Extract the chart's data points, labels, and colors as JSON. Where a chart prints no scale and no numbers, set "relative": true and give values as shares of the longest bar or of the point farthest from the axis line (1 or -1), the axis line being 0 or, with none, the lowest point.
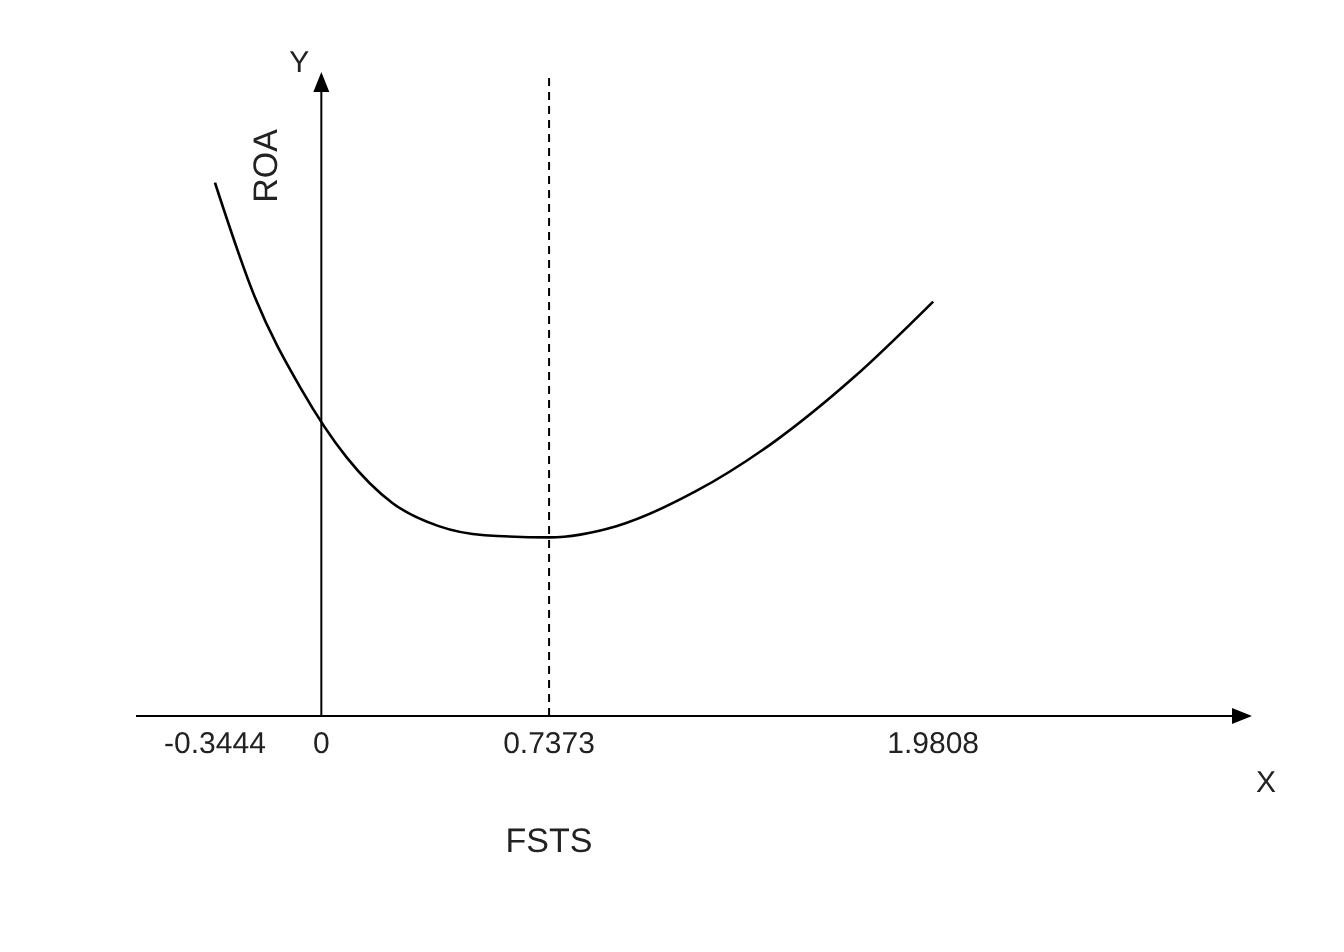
{
  "chart_data": {
    "type": "line",
    "relative": true,
    "xlabel": "FSTS",
    "ylabel": "ROA",
    "annotations": [
      "X",
      "Y"
    ],
    "x": [
      -0.3444,
      -0.215,
      -0.066,
      0.082,
      0.231,
      0.38,
      0.529,
      0.7373,
      0.955,
      1.211,
      1.468,
      1.724,
      1.9808
    ],
    "series": [
      {
        "color": "#000000",
        "values": [
          1,
          0.785,
          0.614,
          0.485,
          0.399,
          0.356,
          0.339,
          0.335,
          0.356,
          0.421,
          0.515,
          0.635,
          0.777
        ]
      }
    ],
    "xlim": [
      -0.6,
      3.0
    ],
    "xticks": [
      -0.3444,
      0,
      0.7373,
      1.9808
    ],
    "ref_lines": [
      {
        "axis": "x",
        "value": 0.7373,
        "line_style": "dashed",
        "color": "#000000"
      }
    ],
    "grid": false,
    "marker": "none",
    "line_style": "solid"
  }
}
